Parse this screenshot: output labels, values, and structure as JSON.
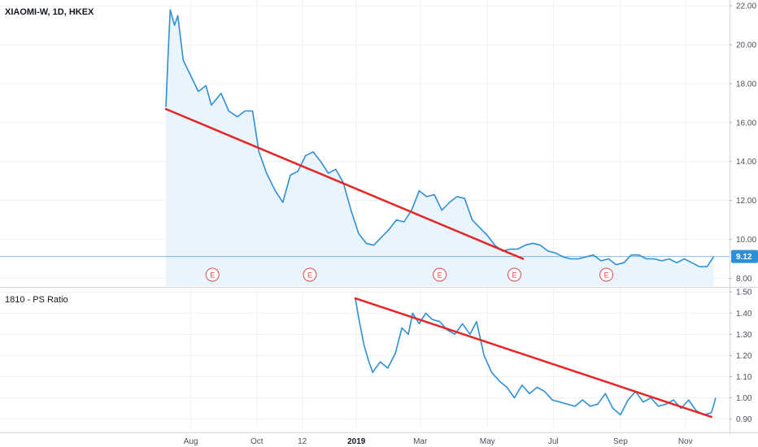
{
  "colors": {
    "line": "#2e8fd6",
    "area": "#e8f3fc",
    "trend": "#e32626",
    "grid": "#eef0f3",
    "earnings": "#e0474c",
    "badge": "#2e8fd6"
  },
  "chart_data": [
    {
      "type": "area",
      "title": "XIAOMI-W, 1D, HKEX",
      "ylim": [
        7.6,
        22.3
      ],
      "yticks": [
        "8.00",
        "10.00",
        "12.00",
        "14.00",
        "16.00",
        "18.00",
        "20.00",
        "22.00"
      ],
      "ytick_values": [
        8,
        10,
        12,
        14,
        16,
        18,
        20,
        22
      ],
      "last_price": "9.12",
      "last_price_value": 9.12,
      "x_start": "2018-07-09",
      "x_end": "2019-11-29",
      "series": [
        {
          "x": [
            "2018-07-09",
            "2018-07-11",
            "2018-07-13",
            "2018-07-17",
            "2018-07-20",
            "2018-07-25",
            "2018-08-01",
            "2018-08-08",
            "2018-08-15",
            "2018-08-20",
            "2018-08-29",
            "2018-09-05",
            "2018-09-13",
            "2018-09-20",
            "2018-09-27",
            "2018-10-03",
            "2018-10-10",
            "2018-10-18",
            "2018-10-25",
            "2018-11-01",
            "2018-11-08",
            "2018-11-15",
            "2018-11-22",
            "2018-11-29",
            "2018-12-06",
            "2018-12-13",
            "2018-12-20",
            "2018-12-27",
            "2019-01-03",
            "2019-01-10",
            "2019-01-17",
            "2019-01-24",
            "2019-01-31",
            "2019-02-07",
            "2019-02-14",
            "2019-02-21",
            "2019-02-28",
            "2019-03-07",
            "2019-03-14",
            "2019-03-21",
            "2019-03-28",
            "2019-04-04",
            "2019-04-11",
            "2019-04-18",
            "2019-04-25",
            "2019-05-02",
            "2019-05-09",
            "2019-05-16",
            "2019-05-23",
            "2019-05-30",
            "2019-06-06",
            "2019-06-13",
            "2019-06-20",
            "2019-06-27",
            "2019-07-04",
            "2019-07-11",
            "2019-07-18",
            "2019-07-25",
            "2019-08-01",
            "2019-08-08",
            "2019-08-15",
            "2019-08-22",
            "2019-08-29",
            "2019-09-05",
            "2019-09-12",
            "2019-09-19",
            "2019-09-26",
            "2019-10-03",
            "2019-10-10",
            "2019-10-17",
            "2019-10-24",
            "2019-10-31",
            "2019-11-07",
            "2019-11-14",
            "2019-11-21",
            "2019-11-27"
          ],
          "values": [
            16.8,
            19.5,
            21.8,
            21.0,
            21.5,
            19.2,
            18.4,
            17.6,
            17.9,
            16.9,
            17.5,
            16.6,
            16.3,
            16.6,
            16.6,
            14.5,
            13.4,
            12.5,
            11.9,
            13.3,
            13.5,
            14.3,
            14.5,
            14.0,
            13.4,
            13.6,
            12.9,
            11.5,
            10.3,
            9.8,
            9.7,
            10.1,
            10.5,
            11.0,
            10.9,
            11.5,
            12.5,
            12.2,
            12.3,
            11.5,
            11.9,
            12.2,
            12.1,
            11.0,
            10.6,
            10.2,
            9.7,
            9.4,
            9.5,
            9.5,
            9.7,
            9.8,
            9.7,
            9.4,
            9.3,
            9.1,
            9.0,
            9.0,
            9.1,
            9.2,
            8.9,
            9.0,
            8.7,
            8.8,
            9.2,
            9.2,
            9.0,
            9.0,
            8.9,
            9.0,
            8.8,
            9.0,
            8.8,
            8.6,
            8.6,
            9.1
          ]
        }
      ],
      "trendline": {
        "x": [
          "2018-07-09",
          "2019-06-04"
        ],
        "y": [
          16.7,
          9.0
        ]
      },
      "earnings_marks": {
        "label": "E",
        "dates": [
          "2018-08-21",
          "2018-11-19",
          "2019-03-19",
          "2019-05-27",
          "2019-08-20"
        ]
      }
    },
    {
      "type": "line",
      "title": "1810 - PS Ratio",
      "ylim": [
        0.86,
        1.52
      ],
      "yticks": [
        "0.90",
        "1.00",
        "1.10",
        "1.20",
        "1.30",
        "1.40",
        "1.50"
      ],
      "ytick_values": [
        0.9,
        1.0,
        1.1,
        1.2,
        1.3,
        1.4,
        1.5
      ],
      "series": [
        {
          "x": [
            "2018-12-31",
            "2019-01-03",
            "2019-01-08",
            "2019-01-12",
            "2019-01-16",
            "2019-01-23",
            "2019-01-30",
            "2019-02-06",
            "2019-02-12",
            "2019-02-18",
            "2019-02-22",
            "2019-02-28",
            "2019-03-06",
            "2019-03-12",
            "2019-03-19",
            "2019-03-26",
            "2019-04-02",
            "2019-04-09",
            "2019-04-16",
            "2019-04-22",
            "2019-04-29",
            "2019-05-06",
            "2019-05-13",
            "2019-05-20",
            "2019-05-27",
            "2019-06-03",
            "2019-06-10",
            "2019-06-17",
            "2019-06-24",
            "2019-07-01",
            "2019-07-08",
            "2019-07-15",
            "2019-07-22",
            "2019-07-29",
            "2019-08-05",
            "2019-08-12",
            "2019-08-19",
            "2019-08-26",
            "2019-09-02",
            "2019-09-09",
            "2019-09-16",
            "2019-09-23",
            "2019-09-30",
            "2019-10-07",
            "2019-10-14",
            "2019-10-21",
            "2019-10-28",
            "2019-11-04",
            "2019-11-11",
            "2019-11-18",
            "2019-11-25",
            "2019-11-29"
          ],
          "values": [
            1.47,
            1.38,
            1.25,
            1.18,
            1.12,
            1.17,
            1.14,
            1.21,
            1.33,
            1.3,
            1.4,
            1.35,
            1.4,
            1.37,
            1.36,
            1.32,
            1.3,
            1.35,
            1.3,
            1.36,
            1.2,
            1.12,
            1.08,
            1.05,
            1.0,
            1.06,
            1.02,
            1.05,
            1.03,
            0.99,
            0.98,
            0.97,
            0.96,
            0.99,
            0.96,
            0.97,
            1.02,
            0.95,
            0.92,
            0.99,
            1.03,
            0.98,
            1.0,
            0.96,
            0.97,
            0.99,
            0.95,
            0.99,
            0.94,
            0.92,
            0.93,
            1.0
          ]
        }
      ],
      "trendline": {
        "x": [
          "2018-12-31",
          "2019-11-25"
        ],
        "y": [
          1.47,
          0.91
        ]
      }
    }
  ],
  "x_axis": {
    "ticks": [
      {
        "label": "Aug",
        "date": "2018-08-01",
        "bold": false
      },
      {
        "label": "Oct",
        "date": "2018-10-01",
        "bold": false
      },
      {
        "label": "12",
        "date": "2018-11-12",
        "bold": false
      },
      {
        "label": "2019",
        "date": "2019-01-01",
        "bold": true
      },
      {
        "label": "Mar",
        "date": "2019-03-01",
        "bold": false
      },
      {
        "label": "May",
        "date": "2019-05-02",
        "bold": false
      },
      {
        "label": "Jul",
        "date": "2019-07-02",
        "bold": false
      },
      {
        "label": "Sep",
        "date": "2019-09-02",
        "bold": false
      },
      {
        "label": "Nov",
        "date": "2019-11-01",
        "bold": false
      }
    ]
  }
}
